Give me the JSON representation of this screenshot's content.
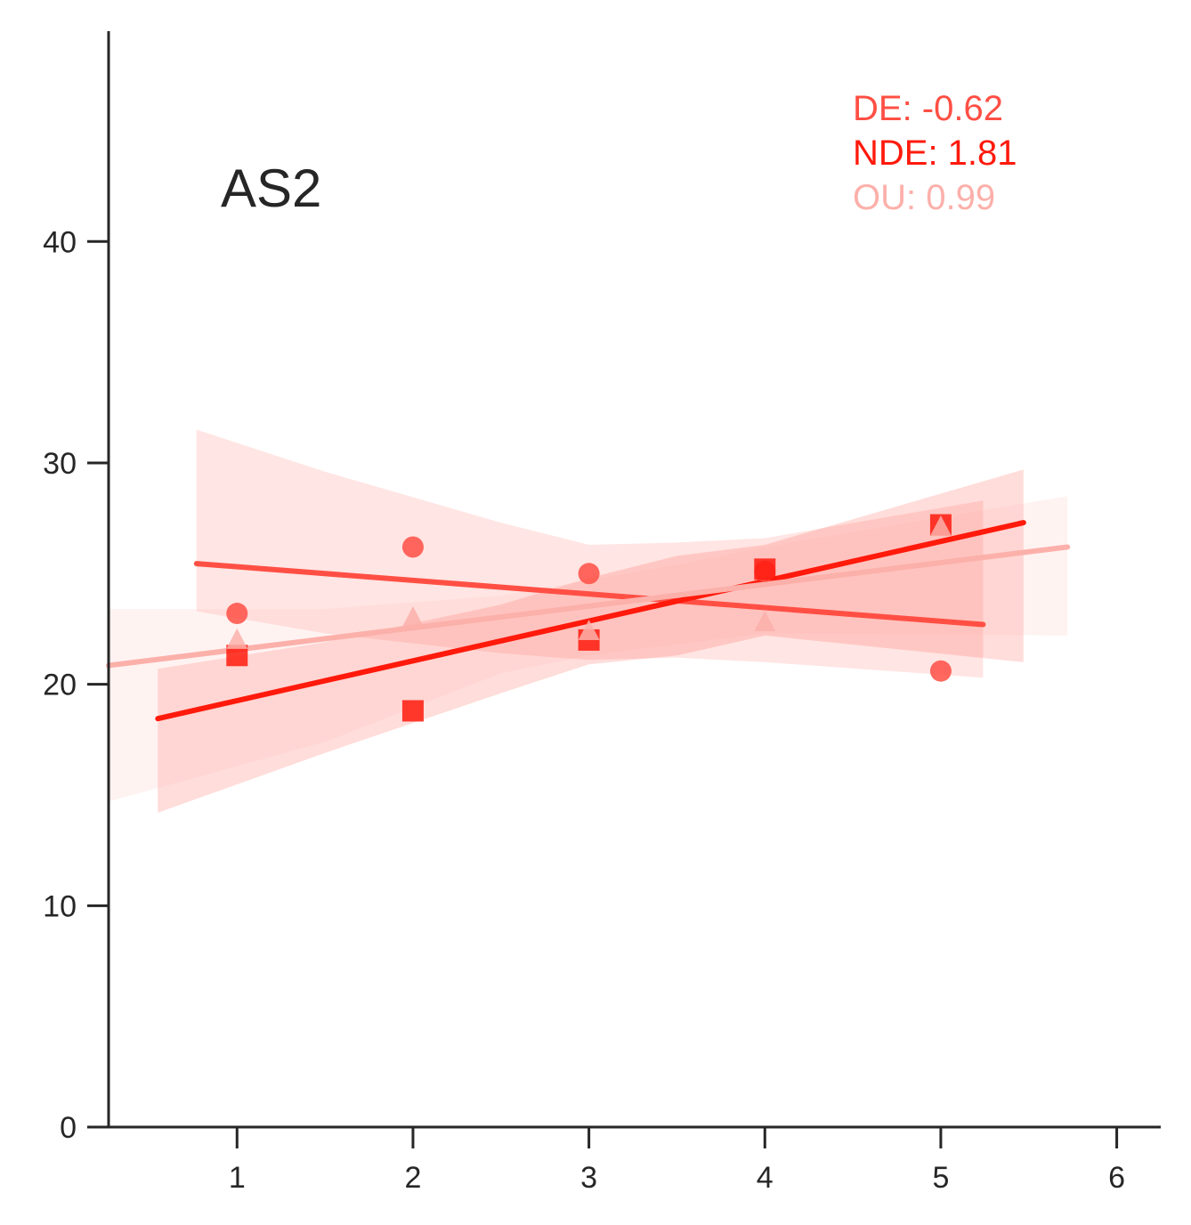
{
  "chart_data": {
    "type": "scatter",
    "title": "AS2",
    "xlabel": "",
    "ylabel": "",
    "xlim": [
      0.27,
      6.25
    ],
    "ylim": [
      0,
      49.5
    ],
    "x_ticks": [
      1,
      2,
      3,
      4,
      5,
      6
    ],
    "y_ticks": [
      0,
      10,
      20,
      30,
      40
    ],
    "grid": false,
    "legend": "none",
    "annotations": [
      {
        "text": "DE: -0.62",
        "color": "#ff4f44"
      },
      {
        "text": "NDE: 1.81",
        "color": "#ff1a0c"
      },
      {
        "text": "OU: 0.99",
        "color": "#fcb0aa"
      }
    ],
    "series": [
      {
        "marker": "circle",
        "color": "#ff4f44",
        "x": [
          1,
          2,
          3,
          4,
          5
        ],
        "y": [
          23.2,
          26.2,
          25.0,
          25.1,
          20.6
        ],
        "fit": {
          "x0": 0.77,
          "y0": 25.45,
          "x1": 5.24,
          "y1": 22.7
        },
        "band": {
          "x": [
            0.77,
            1.5,
            2.5,
            3.0,
            3.5,
            4.0,
            5.24
          ],
          "upper": [
            31.5,
            29.6,
            27.3,
            26.3,
            26.4,
            26.6,
            28.3
          ],
          "lower": [
            23.3,
            22.3,
            21.4,
            21.1,
            21.2,
            21.0,
            20.3
          ]
        }
      },
      {
        "marker": "square",
        "color": "#ff1a0c",
        "x": [
          1,
          2,
          3,
          4,
          5
        ],
        "y": [
          21.3,
          18.8,
          22.0,
          25.2,
          27.2
        ],
        "fit": {
          "x0": 0.55,
          "y0": 18.45,
          "x1": 5.47,
          "y1": 27.3
        },
        "band": {
          "x": [
            0.55,
            1.5,
            2.5,
            3.0,
            3.5,
            4.0,
            5.47
          ],
          "upper": [
            20.7,
            21.9,
            23.6,
            24.8,
            25.8,
            26.3,
            29.7
          ],
          "lower": [
            14.2,
            16.9,
            19.6,
            20.9,
            21.3,
            22.2,
            21.0
          ]
        }
      },
      {
        "marker": "triangle",
        "color": "#fcb0aa",
        "x": [
          1,
          2,
          3,
          4,
          5
        ],
        "y": [
          22.0,
          23.0,
          22.4,
          22.8,
          27.1
        ],
        "fit": {
          "x0": 0.27,
          "y0": 20.85,
          "x1": 5.72,
          "y1": 26.2
        },
        "band": {
          "x": [
            0.27,
            1.5,
            2.5,
            3.0,
            3.5,
            4.0,
            5.72
          ],
          "upper": [
            23.4,
            23.4,
            24.0,
            24.7,
            25.4,
            26.2,
            28.5
          ],
          "lower": [
            14.7,
            17.4,
            20.5,
            21.3,
            21.8,
            22.3,
            22.2
          ]
        }
      }
    ]
  }
}
